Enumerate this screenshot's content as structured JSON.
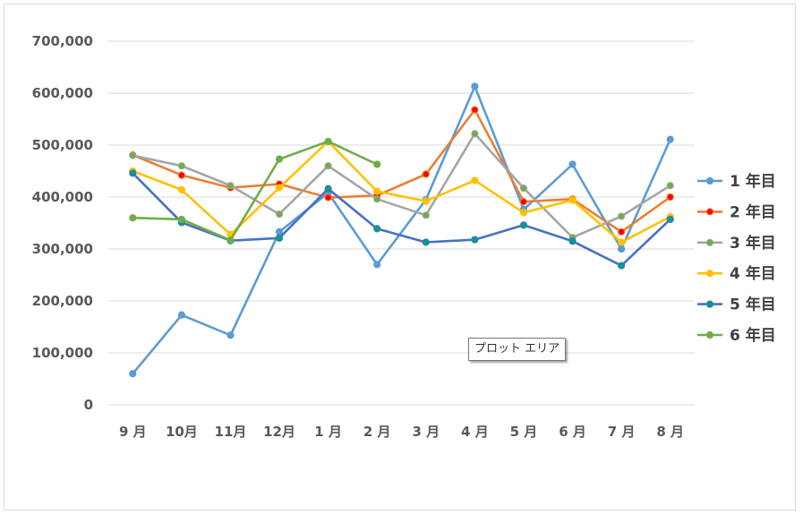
{
  "chart_data": {
    "type": "line",
    "title": "",
    "xlabel": "",
    "ylabel": "",
    "ylim": [
      0,
      700000
    ],
    "yticks": [
      0,
      100000,
      200000,
      300000,
      400000,
      500000,
      600000,
      700000
    ],
    "ytick_labels": [
      "0",
      "100,000",
      "200,000",
      "300,000",
      "400,000",
      "500,000",
      "600,000",
      "700,000"
    ],
    "categories": [
      "9 月",
      "10月",
      "11月",
      "12月",
      "1 月",
      "2 月",
      "3 月",
      "4 月",
      "5 月",
      "6 月",
      "7 月",
      "8 月"
    ],
    "grid": true,
    "legend_position": "right",
    "series": [
      {
        "name": "1 年目",
        "color": "#5B9BD5",
        "marker": "#5B9BD5",
        "values": [
          60000,
          173000,
          134000,
          333000,
          408000,
          270000,
          395000,
          613000,
          376000,
          463000,
          300000,
          511000
        ]
      },
      {
        "name": "2 年目",
        "color": "#ED7D31",
        "marker": "#FF0000",
        "values": [
          481000,
          442000,
          418000,
          425000,
          399000,
          403000,
          444000,
          568000,
          391000,
          396000,
          333000,
          400000
        ]
      },
      {
        "name": "3 年目",
        "color": "#A5A5A5",
        "marker": "#70AD47",
        "values": [
          480000,
          460000,
          422000,
          367000,
          460000,
          396000,
          365000,
          522000,
          417000,
          322000,
          363000,
          422000
        ]
      },
      {
        "name": "4 年目",
        "color": "#FFC000",
        "marker": "#FFC000",
        "values": [
          450000,
          414000,
          328000,
          418000,
          507000,
          411000,
          392000,
          432000,
          370000,
          394000,
          313000,
          362000
        ]
      },
      {
        "name": "5 年目",
        "color": "#4472C4",
        "marker": "#00A080",
        "values": [
          446000,
          351000,
          316000,
          321000,
          416000,
          339000,
          313000,
          318000,
          346000,
          315000,
          268000,
          357000
        ]
      },
      {
        "name": "6 年目",
        "color": "#70AD47",
        "marker": "#70AD47",
        "values": [
          360000,
          357000,
          317000,
          473000,
          507000,
          463000,
          null,
          null,
          null,
          null,
          null,
          null
        ]
      }
    ]
  },
  "tooltip": {
    "text": "プロット エリア"
  }
}
